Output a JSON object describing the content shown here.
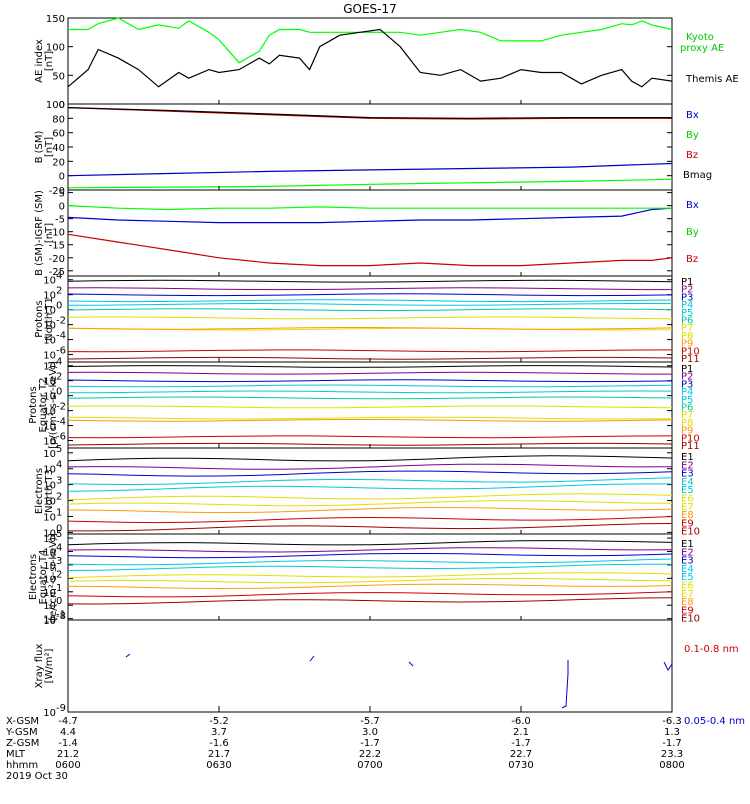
{
  "title": "GOES-17",
  "colors": {
    "black": "#000000",
    "green": "#00ff00",
    "leggreen": "#00cc00",
    "blue": "#0000cc",
    "red": "#cc0000",
    "cyan": "#00c8e0",
    "teal": "#00c8a0",
    "yellow": "#e0e000",
    "orange": "#ff9900",
    "purple": "#800080",
    "darkred": "#990000"
  },
  "chart_data": [
    {
      "type": "line",
      "id": "ae",
      "ylabel": [
        "AE index",
        "[nT]"
      ],
      "yticks": [
        "0",
        "50",
        "100",
        "150"
      ],
      "ylim": [
        0,
        150
      ],
      "x": [
        0,
        2,
        3,
        5,
        7,
        9,
        11,
        12,
        14,
        15,
        17,
        19,
        20,
        21,
        23,
        24,
        25,
        27,
        29,
        31,
        33,
        35,
        37,
        39,
        41,
        43,
        45,
        47,
        49,
        51,
        53,
        55,
        56,
        57,
        58,
        60
      ],
      "series": [
        {
          "name": "Kyoto proxy AE",
          "color": "green",
          "values": [
            130,
            130,
            140,
            150,
            130,
            138,
            132,
            145,
            125,
            112,
            72,
            92,
            120,
            130,
            130,
            125,
            125,
            125,
            125,
            125,
            125,
            120,
            125,
            130,
            125,
            110,
            110,
            110,
            120,
            125,
            130,
            140,
            138,
            145,
            138,
            130
          ]
        },
        {
          "name": "Themis AE",
          "color": "black",
          "values": [
            30,
            60,
            95,
            80,
            60,
            30,
            55,
            45,
            60,
            55,
            60,
            80,
            70,
            85,
            80,
            60,
            100,
            120,
            125,
            130,
            100,
            55,
            50,
            60,
            40,
            45,
            60,
            55,
            55,
            35,
            50,
            60,
            40,
            30,
            45,
            40
          ]
        }
      ],
      "legend": [
        {
          "label": "Kyoto",
          "color": "leggreen"
        },
        {
          "label": "proxy AE",
          "color": "leggreen"
        },
        {
          "label": "Themis AE",
          "color": "black"
        }
      ]
    },
    {
      "type": "line",
      "id": "bsm",
      "ylabel": [
        "B (SM)",
        "[nT]"
      ],
      "yticks": [
        "-20",
        "0",
        "20",
        "40",
        "60",
        "80",
        "100"
      ],
      "ylim": [
        -20,
        100
      ],
      "x": [
        0,
        10,
        20,
        30,
        40,
        50,
        60
      ],
      "series": [
        {
          "name": "Bx",
          "color": "blue",
          "values": [
            0,
            3,
            6,
            8,
            10,
            12,
            17
          ]
        },
        {
          "name": "By",
          "color": "green",
          "values": [
            -17,
            -16,
            -15,
            -12,
            -10,
            -8,
            -5
          ]
        },
        {
          "name": "Bz",
          "color": "red",
          "values": [
            95,
            90,
            85,
            80,
            79,
            80,
            80
          ]
        },
        {
          "name": "Bmag",
          "color": "black",
          "values": [
            95,
            91,
            86,
            81,
            80,
            81,
            81
          ]
        }
      ],
      "legend": [
        {
          "label": "Bx",
          "color": "blue"
        },
        {
          "label": "By",
          "color": "leggreen"
        },
        {
          "label": "Bz",
          "color": "red"
        },
        {
          "label": "Bmag",
          "color": "black"
        }
      ]
    },
    {
      "type": "line",
      "id": "bigrf",
      "ylabel": [
        "B (SM)-IGRF (SM)",
        "[nT]"
      ],
      "yticks": [
        "-25",
        "-20",
        "-15",
        "-10",
        "-5",
        "0",
        "5"
      ],
      "ylim": [
        -27,
        6
      ],
      "x": [
        0,
        5,
        10,
        15,
        20,
        25,
        30,
        35,
        40,
        45,
        50,
        55,
        58,
        60
      ],
      "series": [
        {
          "name": "Bx",
          "color": "blue",
          "values": [
            -4.5,
            -5.5,
            -6.0,
            -6.5,
            -6.5,
            -6.5,
            -6.0,
            -5.5,
            -5.5,
            -5.0,
            -4.5,
            -4.0,
            -1.5,
            -1.0
          ]
        },
        {
          "name": "By",
          "color": "green",
          "values": [
            0,
            -1.0,
            -1.5,
            -1.0,
            -1.0,
            -0.5,
            -1.0,
            -1.0,
            -1.0,
            -1.0,
            -1.0,
            -1.0,
            -1.0,
            -1.0
          ]
        },
        {
          "name": "Bz",
          "color": "red",
          "values": [
            -11,
            -14,
            -17,
            -20,
            -22,
            -23,
            -23,
            -22,
            -23,
            -23,
            -22,
            -21,
            -21,
            -20
          ]
        }
      ],
      "legend": [
        {
          "label": "Bx",
          "color": "blue"
        },
        {
          "label": "By",
          "color": "leggreen"
        },
        {
          "label": "Bz",
          "color": "red"
        }
      ]
    },
    {
      "type": "line",
      "id": "pnorth",
      "scale": "log",
      "ylabel": [
        "Protons",
        "North T1"
      ],
      "yticks": [
        {
          "b": "10",
          "e": "-6"
        },
        {
          "b": "10",
          "e": "-4"
        },
        {
          "b": "10",
          "e": "-2"
        },
        {
          "b": "10",
          "e": "0"
        },
        {
          "b": "10",
          "e": "2"
        },
        {
          "b": "10",
          "e": "4"
        }
      ],
      "ylim": [
        -7,
        4.5
      ],
      "legend": [
        {
          "label": "P1",
          "color": "black"
        },
        {
          "label": "P2",
          "color": "purple"
        },
        {
          "label": "P3",
          "color": "blue"
        },
        {
          "label": "P4",
          "color": "cyan"
        },
        {
          "label": "P5",
          "color": "cyan"
        },
        {
          "label": "P6",
          "color": "teal"
        },
        {
          "label": "P7",
          "color": "yellow"
        },
        {
          "label": "P8",
          "color": "yellow"
        },
        {
          "label": "P9",
          "color": "orange"
        },
        {
          "label": "P10",
          "color": "red"
        },
        {
          "label": "P11",
          "color": "darkred"
        }
      ]
    },
    {
      "type": "line",
      "id": "pequator",
      "scale": "log",
      "ylabel": [
        "Protons",
        "Equator T2",
        "[p/(cm²-s-sr-keV)]"
      ],
      "yticks": [
        {
          "b": "10",
          "e": "-6"
        },
        {
          "b": "10",
          "e": "-4"
        },
        {
          "b": "10",
          "e": "-2"
        },
        {
          "b": "10",
          "e": "0"
        },
        {
          "b": "10",
          "e": "2"
        },
        {
          "b": "10",
          "e": "4"
        }
      ],
      "ylim": [
        -7,
        4.5
      ],
      "legend": [
        {
          "label": "P1",
          "color": "black"
        },
        {
          "label": "P2",
          "color": "purple"
        },
        {
          "label": "P3",
          "color": "blue"
        },
        {
          "label": "P4",
          "color": "cyan"
        },
        {
          "label": "P5",
          "color": "cyan"
        },
        {
          "label": "P6",
          "color": "teal"
        },
        {
          "label": "P7",
          "color": "yellow"
        },
        {
          "label": "P8",
          "color": "yellow"
        },
        {
          "label": "P9",
          "color": "orange"
        },
        {
          "label": "P10",
          "color": "red"
        },
        {
          "label": "P11",
          "color": "darkred"
        }
      ]
    },
    {
      "type": "line",
      "id": "enorth",
      "scale": "log",
      "ylabel": [
        "Electrons",
        "North T3"
      ],
      "yticks": [
        {
          "b": "10",
          "e": "0"
        },
        {
          "b": "10",
          "e": "1"
        },
        {
          "b": "10",
          "e": "2"
        },
        {
          "b": "10",
          "e": "3"
        },
        {
          "b": "10",
          "e": "4"
        },
        {
          "b": "10",
          "e": "5"
        }
      ],
      "ylim": [
        -0.1,
        5.3
      ],
      "legend": [
        {
          "label": "E1",
          "color": "black"
        },
        {
          "label": "E2",
          "color": "purple"
        },
        {
          "label": "E3",
          "color": "blue"
        },
        {
          "label": "E4",
          "color": "cyan"
        },
        {
          "label": "E5",
          "color": "cyan"
        },
        {
          "label": "E6",
          "color": "yellow"
        },
        {
          "label": "E7",
          "color": "yellow"
        },
        {
          "label": "E8",
          "color": "orange"
        },
        {
          "label": "E9",
          "color": "red"
        },
        {
          "label": "E10",
          "color": "darkred"
        }
      ]
    },
    {
      "type": "line",
      "id": "eequator",
      "scale": "log",
      "ylabel": [
        "Electrons",
        "Equator T4",
        "[e/(cm²-s-sr-keV)]"
      ],
      "yticks": [
        {
          "b": "10",
          "e": "-1"
        },
        {
          "b": "10",
          "e": "0"
        },
        {
          "b": "10",
          "e": "1"
        },
        {
          "b": "10",
          "e": "2"
        },
        {
          "b": "10",
          "e": "3"
        },
        {
          "b": "10",
          "e": "4"
        },
        {
          "b": "10",
          "e": "5"
        }
      ],
      "ylim": [
        -1.1,
        5.3
      ],
      "legend": [
        {
          "label": "E1",
          "color": "black"
        },
        {
          "label": "E2",
          "color": "purple"
        },
        {
          "label": "E3",
          "color": "blue"
        },
        {
          "label": "E4",
          "color": "cyan"
        },
        {
          "label": "E5",
          "color": "cyan"
        },
        {
          "label": "E6",
          "color": "yellow"
        },
        {
          "label": "E7",
          "color": "yellow"
        },
        {
          "label": "E8",
          "color": "orange"
        },
        {
          "label": "E9",
          "color": "red"
        },
        {
          "label": "E10",
          "color": "darkred"
        }
      ]
    },
    {
      "type": "line",
      "id": "xray",
      "scale": "log",
      "ylabel": [
        "Xray flux",
        "[W/m²]"
      ],
      "yticks": [
        {
          "b": "10",
          "e": "-9"
        },
        {
          "b": "10",
          "e": "-8"
        }
      ],
      "ylim": [
        -9,
        -8
      ],
      "legend": [
        {
          "label": "0.1-0.8 nm",
          "color": "red"
        },
        {
          "label": "0.05-0.4 nm",
          "color": "blue"
        }
      ]
    }
  ],
  "xaxis": {
    "row_labels": [
      "X-GSM",
      "Y-GSM",
      "Z-GSM",
      "MLT",
      "hhmm"
    ],
    "date": "2019 Oct 30",
    "ticks": [
      {
        "x": 0,
        "vals": [
          "-4.7",
          "4.4",
          "-1.4",
          "21.2",
          "0600"
        ]
      },
      {
        "x": 15,
        "vals": [
          "-5.2",
          "3.7",
          "-1.6",
          "21.7",
          "0630"
        ]
      },
      {
        "x": 30,
        "vals": [
          "-5.7",
          "3.0",
          "-1.7",
          "22.2",
          "0700"
        ]
      },
      {
        "x": 45,
        "vals": [
          "-6.0",
          "2.1",
          "-1.7",
          "22.7",
          "0730"
        ]
      },
      {
        "x": 60,
        "vals": [
          "-6.3",
          "1.3",
          "-1.7",
          "23.3",
          "0800"
        ]
      }
    ]
  }
}
